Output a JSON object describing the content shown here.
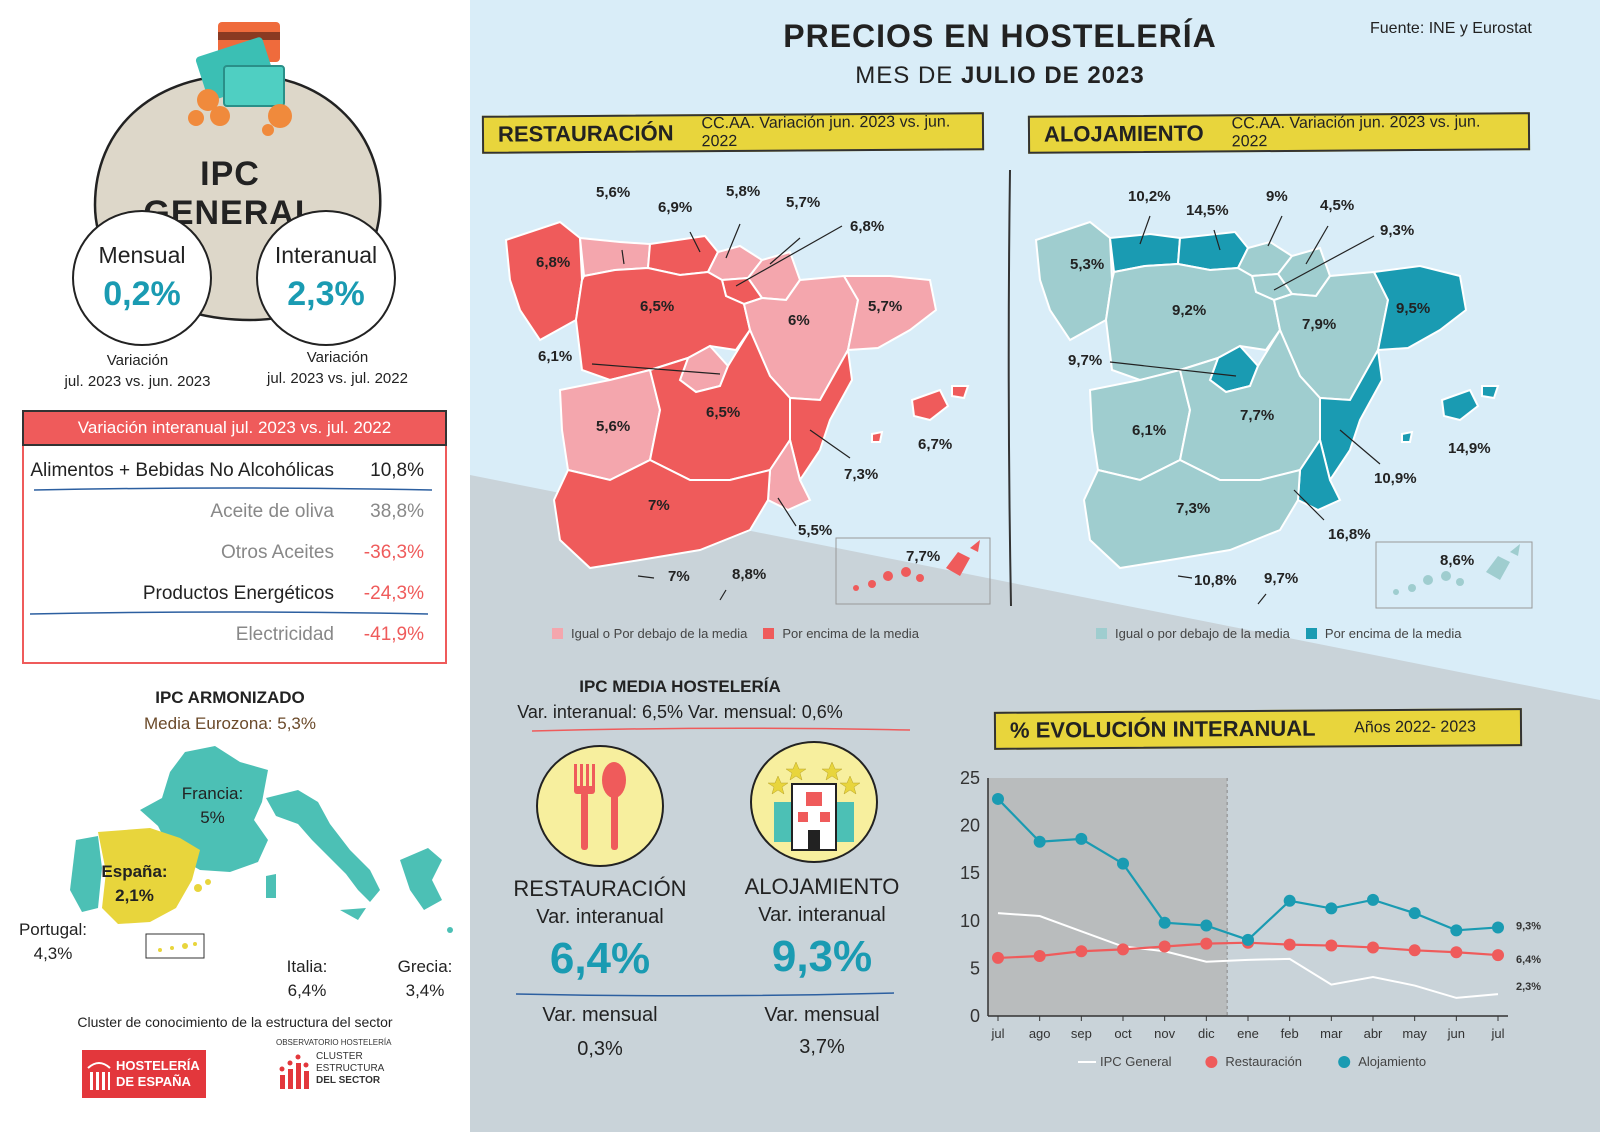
{
  "header": {
    "title": "PRECIOS EN HOSTELERÍA",
    "subtitle_prefix": "MES DE",
    "subtitle_bold": "JULIO DE 2023",
    "source": "Fuente: INE y Eurostat"
  },
  "colors": {
    "coral": "#ef5b5b",
    "pink": "#f4a6ad",
    "teal_dark": "#1a9bb2",
    "teal_light": "#9fcdcf",
    "yellow": "#e8d53c",
    "sky": "#d9edf8",
    "grey_bg": "#c9d3d9"
  },
  "ipc_general": {
    "title": "IPC GENERAL",
    "mensual_label": "Mensual",
    "mensual_value": "0,2%",
    "mensual_caption1": "Variación",
    "mensual_caption2": "jul. 2023 vs. jun. 2023",
    "interanual_label": "Interanual",
    "interanual_value": "2,3%",
    "interanual_caption1": "Variación",
    "interanual_caption2": "jul. 2023 vs. jul. 2022"
  },
  "variation_table": {
    "header": "Variación interanual jul. 2023 vs. jul. 2022",
    "rows": [
      {
        "label": "Alimentos + Bebidas No Alcohólicas",
        "value": "10,8%"
      },
      {
        "label": "Aceite de oliva",
        "value": "38,8%"
      },
      {
        "label": "Otros Aceites",
        "value": "-36,3%"
      },
      {
        "label": "Productos Energéticos",
        "value": "-24,3%"
      },
      {
        "label": "Electricidad",
        "value": "-41,9%"
      }
    ]
  },
  "ipc_armonizado": {
    "title": "IPC ARMONIZADO",
    "media": "Media Eurozona: 5,3%",
    "francia_name": "Francia:",
    "francia_value": "5%",
    "espana_name": "España:",
    "espana_value": "2,1%",
    "portugal_name": "Portugal:",
    "portugal_value": "4,3%",
    "italia_name": "Italia:",
    "italia_value": "6,4%",
    "grecia_name": "Grecia:",
    "grecia_value": "3,4%"
  },
  "footer": {
    "cluster_text": "Cluster de conocimiento de la estructura del sector",
    "logo1_line1": "HOSTELERÍA",
    "logo1_line2": "DE ESPAÑA",
    "logo2_top": "OBSERVATORIO HOSTELERÍA",
    "logo2_line1": "CLUSTER",
    "logo2_line2": "ESTRUCTURA",
    "logo2_line3": "DEL SECTOR"
  },
  "restauracion_map": {
    "title": "RESTAURACIÓN",
    "subtitle": "CC.AA. Variación jun. 2023 vs. jun. 2022",
    "labels": [
      "5,6%",
      "6,9%",
      "5,8%",
      "5,7%",
      "6,8%",
      "6,8%",
      "6,5%",
      "6%",
      "5,7%",
      "6,1%",
      "5,6%",
      "6,5%",
      "6,7%",
      "7,3%",
      "7%",
      "5,5%",
      "7,7%",
      "7%",
      "8,8%"
    ],
    "legend_below": "Igual o Por debajo de la media",
    "legend_above": "Por encima de la media"
  },
  "alojamiento_map": {
    "title": "ALOJAMIENTO",
    "subtitle": "CC.AA. Variación jun. 2023 vs. jun. 2022",
    "labels": [
      "10,2%",
      "14,5%",
      "9%",
      "4,5%",
      "9,3%",
      "5,3%",
      "9,2%",
      "7,9%",
      "9,5%",
      "9,7%",
      "6,1%",
      "7,7%",
      "14,9%",
      "10,9%",
      "7,3%",
      "16,8%",
      "8,6%",
      "10,8%",
      "9,7%"
    ],
    "legend_below": "Igual o por debajo de la media",
    "legend_above": "Por encima de la media"
  },
  "ipc_media": {
    "title": "IPC MEDIA HOSTELERÍA",
    "line": "Var. interanual: 6,5%  Var. mensual: 0,6%",
    "rest_title": "RESTAURACIÓN",
    "rest_sub": "Var. interanual",
    "rest_value": "6,4%",
    "rest_mensual_label": "Var. mensual",
    "rest_mensual_value": "0,3%",
    "aloj_title": "ALOJAMIENTO",
    "aloj_sub": "Var. interanual",
    "aloj_value": "9,3%",
    "aloj_mensual_label": "Var. mensual",
    "aloj_mensual_value": "3,7%"
  },
  "evolucion": {
    "title": "% EVOLUCIÓN INTERANUAL",
    "subtitle": "Años 2022- 2023"
  },
  "chart_data": {
    "type": "line",
    "title": "% EVOLUCIÓN INTERANUAL",
    "categories": [
      "jul",
      "ago",
      "sep",
      "oct",
      "nov",
      "dic",
      "ene",
      "feb",
      "mar",
      "abr",
      "may",
      "jun",
      "jul"
    ],
    "yticks": [
      0,
      5,
      10,
      15,
      20,
      25
    ],
    "ylim": [
      0,
      25
    ],
    "shaded_range": [
      "jul",
      "dic"
    ],
    "legend_position": "bottom",
    "series": [
      {
        "name": "IPC General",
        "color": "#ffffff",
        "markers": false,
        "values": [
          10.8,
          10.5,
          8.9,
          7.3,
          6.8,
          5.7,
          5.9,
          6.0,
          3.3,
          4.1,
          3.2,
          1.9,
          2.3
        ]
      },
      {
        "name": "Restauración",
        "color": "#ef5b5b",
        "markers": true,
        "values": [
          6.1,
          6.3,
          6.8,
          7.0,
          7.3,
          7.6,
          7.7,
          7.5,
          7.4,
          7.2,
          6.9,
          6.7,
          6.4
        ]
      },
      {
        "name": "Alojamiento",
        "color": "#1a9bb2",
        "markers": true,
        "values": [
          22.8,
          18.3,
          18.6,
          16.0,
          9.8,
          9.5,
          8.0,
          12.1,
          11.3,
          12.2,
          10.8,
          9.0,
          9.3
        ]
      }
    ],
    "end_labels": [
      "9,3%",
      "6,4%",
      "2,3%"
    ]
  }
}
